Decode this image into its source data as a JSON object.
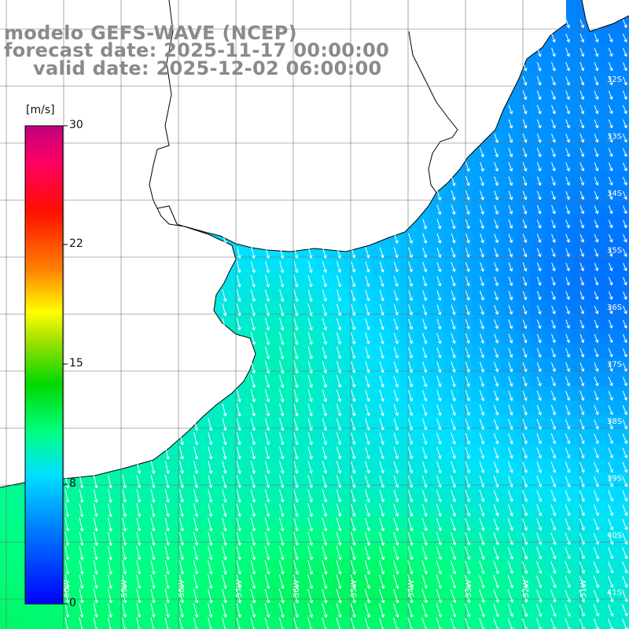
{
  "header": {
    "model": "modelo GEFS-WAVE (NCEP)",
    "forecast": "forecast date: 2025-11-17 00:00:00",
    "valid": "valid date: 2025-12-02 06:00:00"
  },
  "colorbar": {
    "unit": "[m/s]",
    "ticks": [
      "30",
      "22",
      "15",
      "8",
      "0"
    ],
    "colors": [
      "#0000ff",
      "#0080ff",
      "#00e0ff",
      "#00ff80",
      "#00e000",
      "#80e000",
      "#ffff00",
      "#ff8000",
      "#ff0000",
      "#ff0060",
      "#c00080"
    ]
  },
  "lat_labels": [
    "32S",
    "33S",
    "34S",
    "35S",
    "36S",
    "37S",
    "38S",
    "39S",
    "40S",
    "41S"
  ],
  "lon_labels": [
    "60W",
    "59W",
    "58W",
    "57W",
    "56W",
    "55W",
    "54W",
    "53W",
    "52W",
    "51W"
  ],
  "wind_field": {
    "units": "m/s",
    "range": [
      0,
      30
    ],
    "typical_speed": [
      6,
      12
    ],
    "direction": "from north-northeast"
  }
}
